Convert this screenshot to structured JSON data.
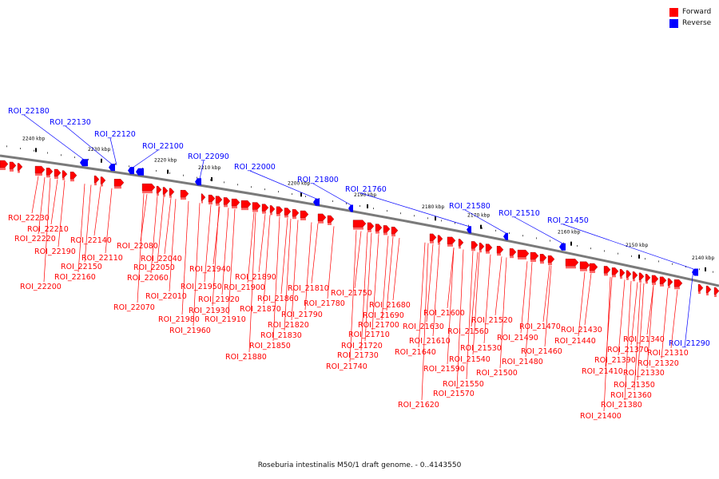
{
  "legend": {
    "forward_label": "Forward",
    "reverse_label": "Reverse",
    "forward_color": "#ff0000",
    "reverse_color": "#0000ff"
  },
  "caption": "Roseburia intestinalis M50/1 draft genome. - 0..4143550",
  "colors": {
    "backbone": "#7a7a7a",
    "forward": "#ff0000",
    "reverse": "#0000ff"
  },
  "scale_unit": "kbp",
  "scale_ticks": [
    2240,
    2230,
    2220,
    2210,
    2200,
    2190,
    2180,
    2170,
    2160,
    2150,
    2140
  ],
  "reverse_labels": [
    "ROI_22180",
    "ROI_22130",
    "ROI_22120",
    "ROI_22100",
    "ROI_22090",
    "ROI_22000",
    "ROI_21800",
    "ROI_21760",
    "ROI_21580",
    "ROI_21510",
    "ROI_21450",
    "ROI_21290"
  ],
  "forward_labels": [
    "ROI_22230",
    "ROI_22210",
    "ROI_22220",
    "ROI_22190",
    "ROI_22200",
    "ROI_22140",
    "ROI_22150",
    "ROI_22110",
    "ROI_22160",
    "ROI_22080",
    "ROI_22040",
    "ROI_22050",
    "ROI_22060",
    "ROI_22070",
    "ROI_22010",
    "ROI_21940",
    "ROI_21950",
    "ROI_21920",
    "ROI_21930",
    "ROI_21980",
    "ROI_21910",
    "ROI_21960",
    "ROI_21890",
    "ROI_21900",
    "ROI_21860",
    "ROI_21870",
    "ROI_21820",
    "ROI_21830",
    "ROI_21850",
    "ROI_21880",
    "ROI_21810",
    "ROI_21780",
    "ROI_21790",
    "ROI_21750",
    "ROI_21680",
    "ROI_21690",
    "ROI_21700",
    "ROI_21710",
    "ROI_21720",
    "ROI_21730",
    "ROI_21740",
    "ROI_21600",
    "ROI_21630",
    "ROI_21610",
    "ROI_21640",
    "ROI_21520",
    "ROI_21560",
    "ROI_21530",
    "ROI_21540",
    "ROI_21590",
    "ROI_21550",
    "ROI_21570",
    "ROI_21620",
    "ROI_21470",
    "ROI_21490",
    "ROI_21460",
    "ROI_21480",
    "ROI_21500",
    "ROI_21430",
    "ROI_21440",
    "ROI_21340",
    "ROI_21370",
    "ROI_21310",
    "ROI_21390",
    "ROI_21320",
    "ROI_21410",
    "ROI_21330",
    "ROI_21350",
    "ROI_21360",
    "ROI_21380",
    "ROI_21400"
  ]
}
